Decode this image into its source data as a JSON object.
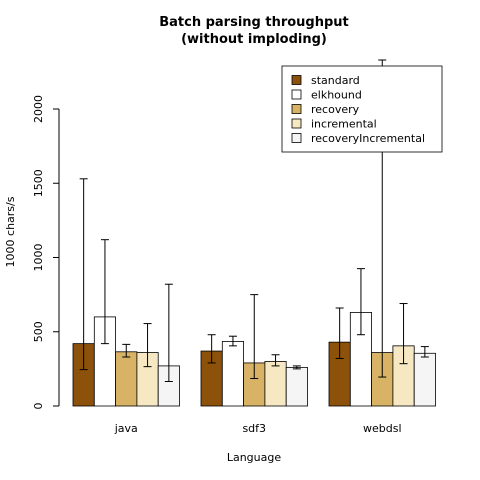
{
  "chart_data": {
    "type": "bar",
    "title": [
      "Batch parsing throughput",
      "(without imploding)"
    ],
    "xlabel": "Language",
    "ylabel": "1000 chars/s",
    "categories": [
      "java",
      "sdf3",
      "webdsl"
    ],
    "ylim": [
      0,
      2000
    ],
    "yticks": [
      0,
      500,
      1000,
      1500,
      2000
    ],
    "legend_position": "top-right",
    "grid": false,
    "series": [
      {
        "name": "standard",
        "color": "#8c510a",
        "values": [
          420,
          370,
          430
        ],
        "err_low": [
          245,
          290,
          320
        ],
        "err_high": [
          1530,
          480,
          660
        ]
      },
      {
        "name": "elkhound",
        "color": "#ffffff",
        "values": [
          600,
          435,
          630
        ],
        "err_low": [
          420,
          405,
          480
        ],
        "err_high": [
          1120,
          470,
          925
        ]
      },
      {
        "name": "recovery",
        "color": "#d8b365",
        "values": [
          365,
          290,
          360
        ],
        "err_low": [
          330,
          185,
          195
        ],
        "err_high": [
          415,
          750,
          2330
        ]
      },
      {
        "name": "incremental",
        "color": "#f6e8c3",
        "values": [
          360,
          300,
          405
        ],
        "err_low": [
          265,
          270,
          285
        ],
        "err_high": [
          555,
          345,
          690
        ]
      },
      {
        "name": "recoveryIncremental",
        "color": "#f5f5f5",
        "values": [
          270,
          260,
          355
        ],
        "err_low": [
          165,
          250,
          330
        ],
        "err_high": [
          820,
          270,
          400
        ]
      }
    ]
  }
}
